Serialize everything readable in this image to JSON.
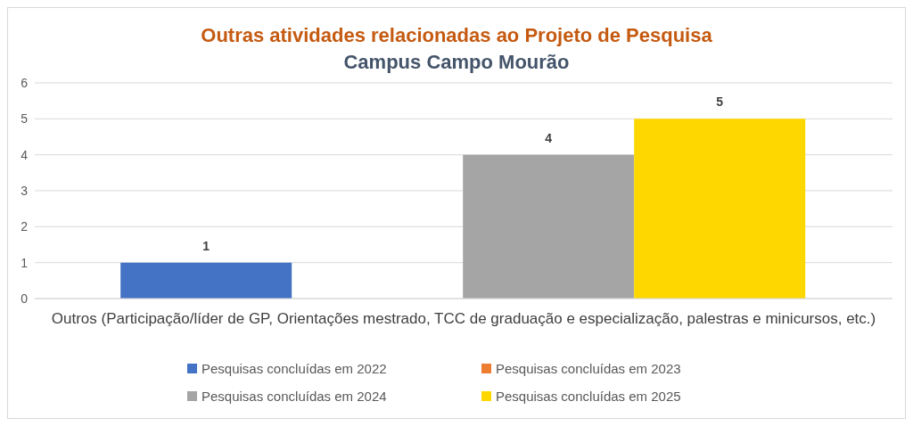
{
  "chart_data": {
    "type": "bar",
    "title": "Outras atividades relacionadas ao Projeto de Pesquisa",
    "subtitle": "Campus Campo Mourão",
    "categories": [
      "Outros (Participação/líder de GP, Orientações mestrado, TCC de graduação e especialização, palestras e minicursos, etc.)"
    ],
    "series": [
      {
        "name": "Pesquisas concluídas em 2022",
        "color": "#4472c4",
        "values": [
          1
        ],
        "value_labels": [
          "1"
        ]
      },
      {
        "name": "Pesquisas concluídas em 2023",
        "color": "#ed7d31",
        "values": [
          null
        ],
        "value_labels": [
          null
        ]
      },
      {
        "name": "Pesquisas concluídas em 2024",
        "color": "#a5a5a5",
        "values": [
          4
        ],
        "value_labels": [
          "4"
        ]
      },
      {
        "name": "Pesquisas concluídas em 2025",
        "color": "#ffd700",
        "values": [
          5
        ],
        "value_labels": [
          "5"
        ]
      }
    ],
    "ylim": [
      0,
      6
    ],
    "yticks": [
      0,
      1,
      2,
      3,
      4,
      5,
      6
    ],
    "grid": "y",
    "legend": "bottom"
  }
}
